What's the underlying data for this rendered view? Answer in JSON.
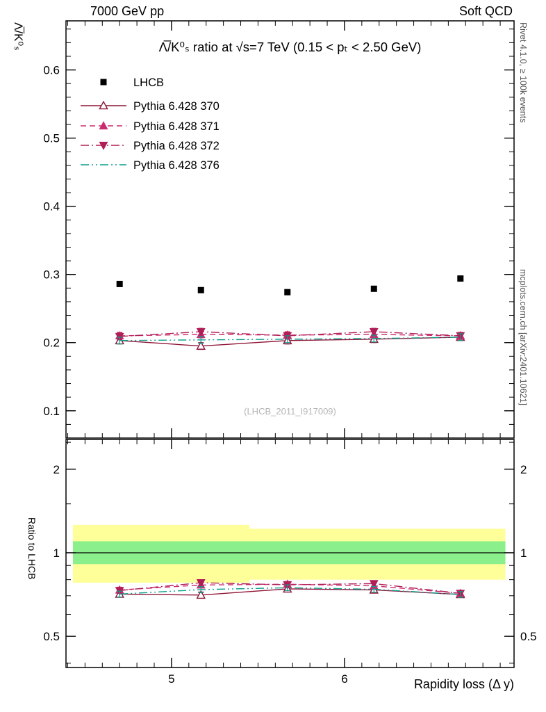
{
  "header": {
    "left": "7000 GeV pp",
    "right": "Soft QCD"
  },
  "right_margin": {
    "top_note": "Rivet 4.1.0, ≥ 100k events",
    "bottom_note": "mcplots.cern.ch [arXiv:2401.10621]"
  },
  "watermark": "(LHCB_2011_I917009)",
  "chart_data": {
    "type": "line",
    "title": "Λ̅/K⁰ₛ ratio at √s=7 TeV (0.15 < pₜ < 2.50 GeV)",
    "xlabel": "Rapidity loss (Δ y)",
    "ylabel": "Λ̅/K⁰ₛ",
    "ratio_ylabel": "Ratio to LHCB",
    "legend_position": "top-left",
    "grid": false,
    "xlim": [
      4.39,
      6.98
    ],
    "ylim": [
      0.06,
      0.672
    ],
    "ratio_ylim": [
      0.386,
      2.56
    ],
    "ratio_yscale": "log",
    "x": [
      4.7,
      5.17,
      5.67,
      6.17,
      6.67
    ],
    "xticks": [
      5,
      6
    ],
    "yticks": [
      0.1,
      0.2,
      0.3,
      0.4,
      0.5,
      0.6
    ],
    "ratio_yticks": [
      0.5,
      1,
      2
    ],
    "ratio_ytick_minors": [
      0.4,
      0.6,
      0.7,
      0.8,
      0.9,
      1.5,
      2.5
    ],
    "series": [
      {
        "name": "LHCB",
        "role": "reference",
        "color": "#000000",
        "marker": "square",
        "line": "none",
        "values": [
          0.286,
          0.277,
          0.274,
          0.279,
          0.294
        ],
        "err": 0
      },
      {
        "name": "Pythia 6.428 370",
        "color": "#8e1537",
        "marker": "triangle-open",
        "line": "solid",
        "values": [
          0.203,
          0.195,
          0.203,
          0.205,
          0.208
        ],
        "err": 0.005
      },
      {
        "name": "Pythia 6.428 371",
        "color": "#cc2a6e",
        "marker": "triangle-up",
        "line": "dashed",
        "values": [
          0.21,
          0.212,
          0.211,
          0.212,
          0.21
        ],
        "err": 0.005
      },
      {
        "name": "Pythia 6.428 372",
        "color": "#b01e56",
        "marker": "triangle-down",
        "line": "dashdot",
        "values": [
          0.209,
          0.216,
          0.21,
          0.216,
          0.21
        ],
        "err": 0.005
      },
      {
        "name": "Pythia 6.428 376",
        "color": "#0c9e8f",
        "marker": "none",
        "line": "dashdotdot",
        "values": [
          0.203,
          0.204,
          0.205,
          0.206,
          0.208
        ],
        "err": 0.005
      }
    ],
    "ratio_bands": {
      "bin_edges": [
        4.43,
        4.95,
        5.45,
        5.95,
        6.45,
        6.93
      ],
      "yellow": {
        "color": "#ffff99",
        "lo": [
          0.78,
          0.78,
          0.8,
          0.8,
          0.8
        ],
        "hi": [
          1.26,
          1.26,
          1.22,
          1.22,
          1.22
        ]
      },
      "green": {
        "color": "#8bef8b",
        "lo": [
          0.91,
          0.91,
          0.91,
          0.91,
          0.91
        ],
        "hi": [
          1.1,
          1.1,
          1.1,
          1.1,
          1.1
        ]
      }
    }
  }
}
